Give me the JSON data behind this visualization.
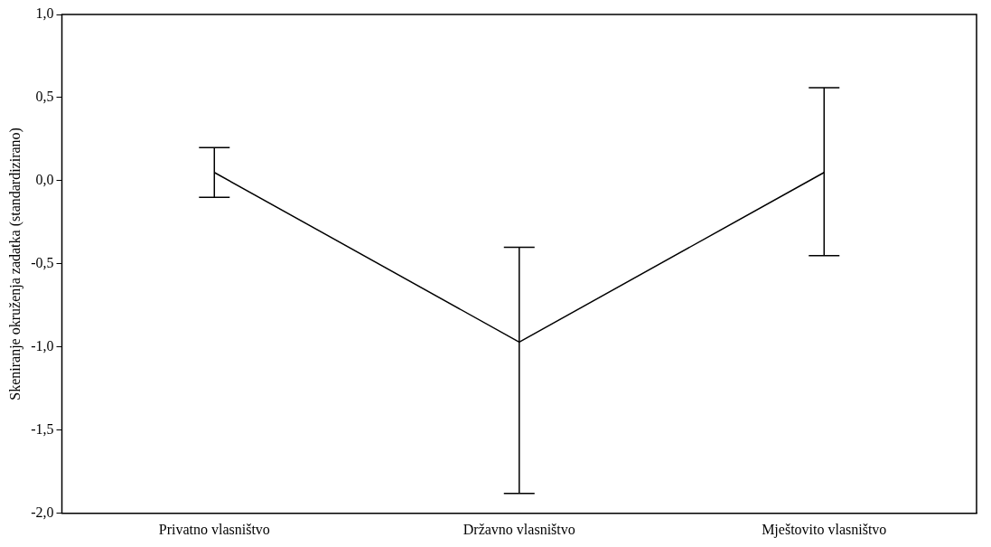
{
  "chart_data": {
    "type": "line",
    "ylabel": "Skeniranje okruženja zadatka (standardizirano)",
    "categories": [
      "Privatno vlasništvo",
      "Državno vlasništvo",
      "Mještovito vlasništvo"
    ],
    "series": [
      {
        "color": "#000000",
        "values": [
          0.05,
          -0.97,
          0.05
        ],
        "errors": [
          [
            -0.1,
            0.2
          ],
          [
            -1.88,
            -0.4
          ],
          [
            -0.45,
            0.56
          ]
        ]
      }
    ],
    "ylim": [
      -2.0,
      1.0
    ],
    "yticks": [
      {
        "value": -2,
        "label": "-2,0"
      },
      {
        "value": -1.5,
        "label": "-1,5"
      },
      {
        "value": -1,
        "label": "-1,0"
      },
      {
        "value": -0.5,
        "label": "-0,5"
      },
      {
        "value": 0,
        "label": "0,0"
      },
      {
        "value": 0.5,
        "label": "0,5"
      },
      {
        "value": 1,
        "label": "1,0"
      }
    ],
    "grid": false,
    "legend": false,
    "marker": "none",
    "line_style": "solid"
  }
}
